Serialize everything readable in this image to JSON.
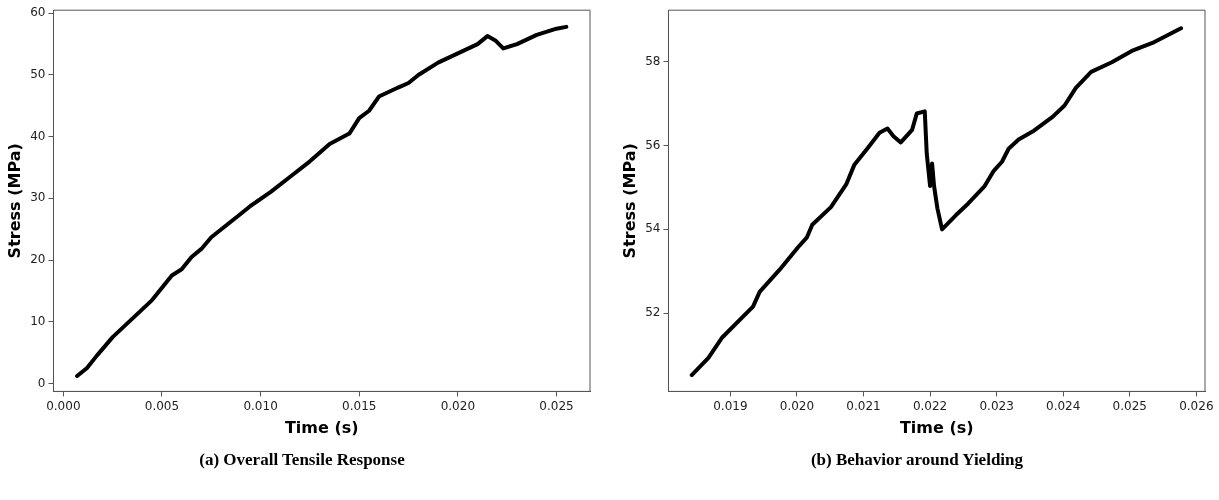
{
  "chart_data": [
    {
      "type": "line",
      "title": "(a) Overall Tensile Response",
      "xlabel": "Time (s)",
      "ylabel": "Stress (MPa)",
      "xlim": [
        -0.0005,
        0.0267
      ],
      "ylim": [
        -1.3,
        60.5
      ],
      "xticks": [
        {
          "value": 0,
          "label": "0.000"
        },
        0.005,
        {
          "value": 0.01,
          "label": "0.010"
        },
        0.015,
        {
          "value": 0.02,
          "label": "0.020"
        },
        0.025
      ],
      "yticks": [
        0,
        10,
        20,
        30,
        40,
        50,
        60
      ],
      "grid": false,
      "marker": "none",
      "line_style": "solid",
      "series": [
        {
          "color": "#000000",
          "x": [
            0.0007,
            0.0012,
            0.0017,
            0.0025,
            0.0035,
            0.0045,
            0.0055,
            0.006,
            0.0065,
            0.007,
            0.0075,
            0.009,
            0.0095,
            0.0105,
            0.0115,
            0.0125,
            0.0135,
            0.0145,
            0.015,
            0.0155,
            0.016,
            0.017,
            0.0175,
            0.018,
            0.019,
            0.02,
            0.021,
            0.0215,
            0.0219,
            0.0223,
            0.023,
            0.024,
            0.025,
            0.0255
          ],
          "values": [
            1.2,
            2.5,
            4.5,
            7.5,
            10.5,
            13.5,
            17.5,
            18.5,
            20.5,
            21.8,
            23.7,
            27.5,
            28.8,
            31,
            33.5,
            36,
            38.8,
            40.5,
            43,
            44.2,
            46.5,
            48,
            48.7,
            50,
            52,
            53.5,
            55,
            56.3,
            55.6,
            54.3,
            55,
            56.5,
            57.5,
            57.8
          ]
        }
      ]
    },
    {
      "type": "line",
      "title": "(b) Behavior around Yielding",
      "xlabel": "Time (s)",
      "ylabel": "Stress (MPa)",
      "xlim": [
        0.01807,
        0.02613
      ],
      "ylim": [
        50.14,
        59.22
      ],
      "xticks": [
        0.019,
        {
          "value": 0.02,
          "label": "0.020"
        },
        0.021,
        0.022,
        0.023,
        0.024,
        0.025,
        0.026
      ],
      "yticks": [
        52,
        54,
        56,
        58
      ],
      "grid": false,
      "marker": "none",
      "line_style": "solid",
      "series": [
        {
          "color": "#000000",
          "x": [
            0.01842,
            0.01867,
            0.01888,
            0.01934,
            0.01944,
            0.01974,
            0.02002,
            0.02015,
            0.02023,
            0.02051,
            0.02074,
            0.02086,
            0.02107,
            0.02124,
            0.02136,
            0.02145,
            0.02156,
            0.02173,
            0.0218,
            0.02192,
            0.02195,
            0.022,
            0.02203,
            0.02206,
            0.02211,
            0.02218,
            0.02239,
            0.02257,
            0.02282,
            0.02295,
            0.02308,
            0.02318,
            0.02333,
            0.02356,
            0.02384,
            0.02402,
            0.02419,
            0.02442,
            0.02473,
            0.02503,
            0.02534,
            0.02577
          ],
          "values": [
            50.53,
            50.94,
            51.43,
            52.16,
            52.51,
            53.04,
            53.58,
            53.81,
            54.11,
            54.53,
            55.07,
            55.53,
            55.95,
            56.3,
            56.4,
            56.22,
            56.07,
            56.37,
            56.76,
            56.81,
            55.8,
            55.03,
            55.57,
            55.03,
            54.5,
            54,
            54.34,
            54.61,
            55.03,
            55.38,
            55.61,
            55.92,
            56.14,
            56.35,
            56.68,
            56.95,
            57.37,
            57.75,
            57.98,
            58.25,
            58.44,
            58.79
          ]
        }
      ]
    }
  ]
}
